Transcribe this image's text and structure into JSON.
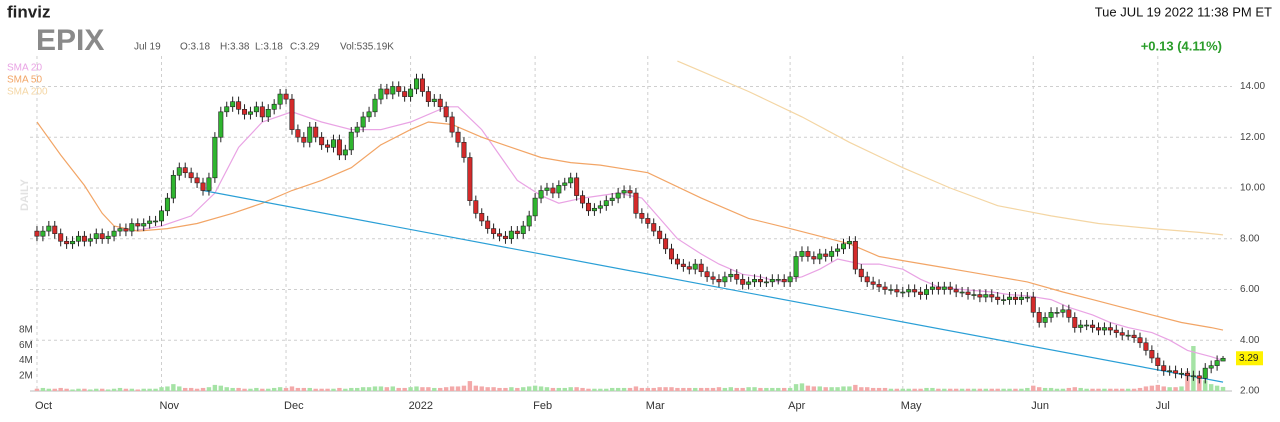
{
  "chart_data": {
    "type": "candlestick",
    "brand": "finviz",
    "title": "EPIX",
    "date": "Jul 19",
    "ohlc_text": [
      "O:3.18",
      "H:3.38",
      "L:3.18",
      "C:3.29"
    ],
    "volume_text": "Vol:535.19K",
    "timestamp": "Tue JUL 19 2022 11:38 PM ET",
    "change": "+0.13 (4.11%)",
    "change_color": "#2a9d2a",
    "period_label": "DAILY",
    "up_color": "#2fb52f",
    "down_color": "#d42a2a",
    "up_volume_color": "#a5e3a5",
    "down_volume_color": "#f3a9a9",
    "grid": true,
    "categories": [
      "Oct",
      null,
      null,
      null,
      null,
      null,
      null,
      null,
      null,
      null,
      null,
      null,
      null,
      null,
      null,
      null,
      null,
      null,
      null,
      null,
      null,
      "Nov",
      null,
      null,
      null,
      null,
      null,
      null,
      null,
      null,
      null,
      null,
      null,
      null,
      null,
      null,
      null,
      null,
      null,
      null,
      null,
      null,
      "Dec",
      null,
      null,
      null,
      null,
      null,
      null,
      null,
      null,
      null,
      null,
      null,
      null,
      null,
      null,
      null,
      null,
      null,
      null,
      null,
      null,
      "2022",
      null,
      null,
      null,
      null,
      null,
      null,
      null,
      null,
      null,
      null,
      null,
      null,
      null,
      null,
      null,
      null,
      null,
      null,
      null,
      null,
      "Feb",
      null,
      null,
      null,
      null,
      null,
      null,
      null,
      null,
      null,
      null,
      null,
      null,
      null,
      null,
      null,
      null,
      null,
      null,
      "Mar",
      null,
      null,
      null,
      null,
      null,
      null,
      null,
      null,
      null,
      null,
      null,
      null,
      null,
      null,
      null,
      null,
      null,
      null,
      null,
      null,
      null,
      null,
      null,
      "Apr",
      null,
      null,
      null,
      null,
      null,
      null,
      null,
      null,
      null,
      null,
      null,
      null,
      null,
      null,
      null,
      null,
      null,
      null,
      "May",
      null,
      null,
      null,
      null,
      null,
      null,
      null,
      null,
      null,
      null,
      null,
      null,
      null,
      null,
      null,
      null,
      null,
      null,
      null,
      null,
      null,
      "Jun",
      null,
      null,
      null,
      null,
      null,
      null,
      null,
      null,
      null,
      null,
      null,
      null,
      null,
      null,
      null,
      null,
      null,
      null,
      null,
      null,
      "Jul",
      null,
      null,
      null,
      null,
      null,
      null,
      null,
      null,
      null,
      null,
      null
    ],
    "open": [
      8.3,
      8.1,
      8.3,
      8.5,
      8.2,
      7.9,
      7.8,
      7.9,
      8.1,
      7.9,
      8.0,
      8.2,
      8.0,
      8.1,
      8.3,
      8.4,
      8.3,
      8.6,
      8.5,
      8.6,
      8.7,
      8.7,
      9.1,
      9.6,
      10.5,
      10.8,
      10.6,
      10.4,
      10.2,
      9.9,
      10.4,
      12.0,
      13.0,
      13.2,
      13.4,
      13.1,
      12.9,
      13.0,
      13.2,
      12.8,
      13.1,
      13.3,
      13.7,
      13.5,
      12.3,
      12.0,
      11.8,
      12.4,
      12.0,
      11.7,
      11.6,
      11.9,
      11.3,
      11.5,
      12.2,
      12.4,
      12.8,
      13.0,
      13.5,
      13.9,
      13.7,
      14.0,
      13.8,
      13.6,
      13.9,
      14.3,
      13.8,
      13.4,
      13.5,
      13.2,
      12.8,
      12.2,
      11.8,
      11.2,
      9.5,
      9.0,
      8.7,
      8.4,
      8.2,
      8.1,
      8.0,
      8.3,
      8.2,
      8.5,
      8.9,
      9.6,
      9.9,
      10.0,
      9.8,
      10.1,
      10.2,
      10.4,
      9.7,
      9.4,
      9.1,
      9.2,
      9.3,
      9.5,
      9.6,
      9.8,
      9.9,
      9.8,
      9.0,
      8.8,
      8.6,
      8.3,
      8.0,
      7.6,
      7.2,
      7.0,
      6.9,
      6.8,
      7.0,
      6.7,
      6.5,
      6.4,
      6.3,
      6.5,
      6.6,
      6.4,
      6.2,
      6.3,
      6.4,
      6.3,
      6.3,
      6.4,
      6.4,
      6.3,
      6.5,
      7.3,
      7.5,
      7.3,
      7.2,
      7.4,
      7.3,
      7.5,
      7.6,
      7.8,
      7.9,
      6.8,
      6.5,
      6.3,
      6.2,
      6.1,
      6.0,
      6.0,
      5.9,
      5.9,
      6.0,
      5.9,
      5.8,
      6.0,
      6.1,
      6.0,
      6.1,
      6.0,
      5.9,
      5.9,
      5.8,
      5.8,
      5.7,
      5.8,
      5.7,
      5.6,
      5.6,
      5.7,
      5.6,
      5.7,
      5.7,
      5.1,
      4.7,
      4.9,
      5.1,
      5.1,
      5.2,
      4.9,
      4.5,
      4.6,
      4.6,
      4.5,
      4.4,
      4.5,
      4.4,
      4.3,
      4.2,
      4.2,
      4.1,
      3.9,
      3.6,
      3.3,
      3.0,
      2.8,
      2.8,
      2.7,
      2.7,
      2.6,
      2.6,
      2.5,
      2.9,
      3.0,
      3.18
    ],
    "high": [
      8.5,
      8.5,
      8.7,
      8.7,
      8.4,
      8.1,
      8.1,
      8.3,
      8.3,
      8.2,
      8.4,
      8.4,
      8.3,
      8.5,
      8.6,
      8.6,
      8.8,
      8.8,
      8.8,
      8.9,
      8.9,
      9.3,
      9.8,
      10.7,
      11.0,
      11.0,
      10.8,
      10.6,
      10.4,
      10.6,
      12.2,
      13.2,
      13.4,
      13.6,
      13.6,
      13.3,
      13.2,
      13.4,
      13.4,
      13.3,
      13.5,
      13.9,
      13.9,
      13.7,
      12.5,
      12.2,
      12.6,
      12.6,
      12.2,
      11.9,
      12.1,
      12.1,
      11.7,
      12.4,
      12.6,
      13.0,
      13.2,
      13.7,
      14.1,
      14.1,
      14.2,
      14.2,
      14.0,
      14.1,
      14.5,
      14.5,
      14.0,
      13.7,
      13.7,
      13.4,
      13.0,
      12.4,
      12.0,
      11.4,
      9.7,
      9.2,
      8.9,
      8.6,
      8.4,
      8.3,
      8.5,
      8.5,
      8.7,
      9.1,
      9.8,
      10.1,
      10.2,
      10.2,
      10.3,
      10.4,
      10.6,
      10.6,
      9.9,
      9.6,
      9.4,
      9.5,
      9.7,
      9.8,
      10.0,
      10.1,
      10.1,
      10.0,
      9.2,
      9.0,
      8.8,
      8.5,
      8.2,
      7.8,
      7.4,
      7.2,
      7.1,
      7.2,
      7.2,
      6.9,
      6.7,
      6.6,
      6.7,
      6.8,
      6.8,
      6.6,
      6.5,
      6.6,
      6.6,
      6.5,
      6.6,
      6.6,
      6.6,
      6.7,
      7.5,
      7.7,
      7.7,
      7.5,
      7.6,
      7.6,
      7.7,
      7.8,
      8.0,
      8.1,
      8.1,
      7.0,
      6.7,
      6.5,
      6.4,
      6.3,
      6.2,
      6.2,
      6.1,
      6.2,
      6.2,
      6.1,
      6.2,
      6.3,
      6.3,
      6.3,
      6.3,
      6.2,
      6.1,
      6.1,
      6.0,
      6.0,
      6.0,
      6.0,
      5.9,
      5.8,
      5.9,
      5.9,
      5.9,
      5.9,
      5.9,
      5.3,
      5.1,
      5.3,
      5.3,
      5.4,
      5.4,
      5.1,
      4.8,
      4.8,
      4.8,
      4.7,
      4.7,
      4.7,
      4.6,
      4.5,
      4.4,
      4.4,
      4.3,
      4.1,
      3.8,
      3.5,
      3.2,
      3.0,
      3.0,
      2.9,
      2.9,
      2.8,
      2.8,
      3.1,
      3.2,
      3.4,
      3.38
    ],
    "low": [
      7.9,
      7.9,
      8.1,
      8.0,
      7.7,
      7.6,
      7.6,
      7.7,
      7.7,
      7.7,
      7.8,
      7.8,
      7.8,
      7.9,
      8.1,
      8.1,
      8.1,
      8.3,
      8.3,
      8.4,
      8.5,
      8.5,
      8.9,
      9.4,
      10.3,
      10.4,
      10.2,
      10.0,
      9.7,
      9.7,
      10.2,
      11.8,
      12.8,
      13.0,
      12.9,
      12.7,
      12.7,
      12.8,
      12.6,
      12.6,
      12.9,
      13.1,
      13.3,
      12.1,
      11.8,
      11.6,
      11.6,
      11.8,
      11.5,
      11.4,
      11.4,
      11.1,
      11.1,
      11.3,
      12.0,
      12.2,
      12.6,
      12.8,
      13.3,
      13.5,
      13.5,
      13.6,
      13.4,
      13.4,
      13.7,
      13.6,
      13.2,
      13.2,
      13.0,
      12.6,
      12.0,
      11.6,
      11.0,
      9.3,
      8.8,
      8.5,
      8.2,
      8.0,
      7.9,
      7.8,
      7.8,
      8.0,
      8.0,
      8.3,
      8.7,
      9.4,
      9.7,
      9.6,
      9.6,
      9.9,
      10.0,
      9.5,
      9.2,
      8.9,
      8.9,
      9.0,
      9.1,
      9.3,
      9.4,
      9.6,
      9.6,
      8.8,
      8.6,
      8.4,
      8.1,
      7.8,
      7.4,
      7.0,
      6.8,
      6.7,
      6.6,
      6.6,
      6.5,
      6.3,
      6.2,
      6.1,
      6.1,
      6.3,
      6.2,
      6.0,
      6.0,
      6.1,
      6.1,
      6.1,
      6.1,
      6.2,
      6.1,
      6.1,
      6.3,
      7.1,
      7.1,
      7.0,
      7.0,
      7.1,
      7.1,
      7.3,
      7.4,
      7.6,
      6.6,
      6.3,
      6.1,
      6.0,
      5.9,
      5.8,
      5.8,
      5.7,
      5.7,
      5.7,
      5.7,
      5.6,
      5.6,
      5.8,
      5.8,
      5.8,
      5.8,
      5.7,
      5.7,
      5.6,
      5.6,
      5.5,
      5.5,
      5.5,
      5.4,
      5.4,
      5.4,
      5.4,
      5.4,
      5.5,
      4.9,
      4.5,
      4.5,
      4.7,
      4.9,
      4.9,
      4.7,
      4.3,
      4.3,
      4.4,
      4.3,
      4.2,
      4.2,
      4.2,
      4.1,
      4.0,
      4.0,
      3.9,
      3.7,
      3.4,
      3.1,
      2.8,
      2.6,
      2.6,
      2.5,
      2.5,
      2.4,
      2.4,
      2.3,
      2.3,
      2.7,
      2.8,
      3.18
    ],
    "close": [
      8.1,
      8.3,
      8.5,
      8.2,
      7.9,
      7.8,
      7.9,
      8.1,
      7.9,
      8.0,
      8.2,
      8.0,
      8.1,
      8.3,
      8.4,
      8.3,
      8.6,
      8.5,
      8.6,
      8.7,
      8.7,
      9.1,
      9.6,
      10.5,
      10.8,
      10.6,
      10.4,
      10.2,
      9.9,
      10.4,
      12.0,
      13.0,
      13.2,
      13.4,
      13.1,
      12.9,
      13.0,
      13.2,
      12.8,
      13.1,
      13.3,
      13.7,
      13.5,
      12.3,
      12.0,
      11.8,
      12.4,
      12.0,
      11.7,
      11.6,
      11.9,
      11.3,
      11.5,
      12.2,
      12.4,
      12.8,
      13.0,
      13.5,
      13.9,
      13.7,
      14.0,
      13.8,
      13.6,
      13.9,
      14.3,
      13.8,
      13.4,
      13.5,
      13.2,
      12.8,
      12.2,
      11.8,
      11.2,
      9.5,
      9.0,
      8.7,
      8.4,
      8.2,
      8.1,
      8.0,
      8.3,
      8.2,
      8.5,
      8.9,
      9.6,
      9.9,
      10.0,
      9.8,
      10.1,
      10.2,
      10.4,
      9.7,
      9.4,
      9.1,
      9.2,
      9.3,
      9.5,
      9.6,
      9.8,
      9.9,
      9.8,
      9.0,
      8.8,
      8.6,
      8.3,
      8.0,
      7.6,
      7.2,
      7.0,
      6.9,
      6.8,
      7.0,
      6.7,
      6.5,
      6.4,
      6.3,
      6.5,
      6.6,
      6.4,
      6.2,
      6.3,
      6.4,
      6.3,
      6.3,
      6.4,
      6.4,
      6.3,
      6.5,
      7.3,
      7.5,
      7.3,
      7.2,
      7.4,
      7.3,
      7.5,
      7.6,
      7.8,
      7.9,
      6.8,
      6.5,
      6.3,
      6.2,
      6.1,
      6.0,
      6.0,
      5.9,
      5.9,
      6.0,
      5.9,
      5.8,
      6.0,
      6.1,
      6.0,
      6.1,
      6.0,
      5.9,
      5.9,
      5.8,
      5.8,
      5.7,
      5.8,
      5.7,
      5.6,
      5.6,
      5.7,
      5.6,
      5.7,
      5.7,
      5.1,
      4.7,
      4.9,
      5.1,
      5.1,
      5.2,
      4.9,
      4.5,
      4.6,
      4.6,
      4.5,
      4.4,
      4.5,
      4.4,
      4.3,
      4.2,
      4.2,
      4.1,
      3.9,
      3.6,
      3.3,
      3.0,
      2.8,
      2.8,
      2.7,
      2.7,
      2.6,
      2.6,
      2.5,
      2.9,
      3.0,
      3.2,
      3.29
    ],
    "volume": [
      0.3,
      0.4,
      0.3,
      0.3,
      0.4,
      0.3,
      0.2,
      0.3,
      0.3,
      0.2,
      0.3,
      0.3,
      0.2,
      0.3,
      0.4,
      0.3,
      0.3,
      0.2,
      0.3,
      0.3,
      0.3,
      0.5,
      0.6,
      0.9,
      0.6,
      0.4,
      0.4,
      0.3,
      0.4,
      0.5,
      0.8,
      0.7,
      0.5,
      0.4,
      0.4,
      0.3,
      0.3,
      0.4,
      0.3,
      0.3,
      0.4,
      0.5,
      0.4,
      0.6,
      0.4,
      0.4,
      0.4,
      0.3,
      0.3,
      0.3,
      0.3,
      0.4,
      0.3,
      0.4,
      0.4,
      0.5,
      0.5,
      0.6,
      0.6,
      0.5,
      0.6,
      0.4,
      0.4,
      0.5,
      0.6,
      0.5,
      0.5,
      0.4,
      0.4,
      0.5,
      0.6,
      0.6,
      0.7,
      1.3,
      0.7,
      0.6,
      0.5,
      0.5,
      0.4,
      0.4,
      0.5,
      0.4,
      0.5,
      0.6,
      0.7,
      0.6,
      0.5,
      0.4,
      0.4,
      0.4,
      0.5,
      0.5,
      0.4,
      0.3,
      0.3,
      0.3,
      0.3,
      0.4,
      0.4,
      0.4,
      0.4,
      0.6,
      0.4,
      0.4,
      0.4,
      0.5,
      0.5,
      0.5,
      0.4,
      0.4,
      0.4,
      0.4,
      0.4,
      0.4,
      0.4,
      0.5,
      0.4,
      0.5,
      0.4,
      0.4,
      0.5,
      0.5,
      0.4,
      0.4,
      0.4,
      0.4,
      0.4,
      0.4,
      0.9,
      1.0,
      0.7,
      0.6,
      0.6,
      0.5,
      0.5,
      0.5,
      0.6,
      0.6,
      0.8,
      0.5,
      0.5,
      0.4,
      0.4,
      0.4,
      0.3,
      0.3,
      0.3,
      0.3,
      0.3,
      0.3,
      0.4,
      0.4,
      0.3,
      0.3,
      0.3,
      0.3,
      0.3,
      0.3,
      0.3,
      0.3,
      0.3,
      0.3,
      0.3,
      0.3,
      0.3,
      0.3,
      0.3,
      0.4,
      0.7,
      0.5,
      0.4,
      0.4,
      0.3,
      0.3,
      0.4,
      0.5,
      0.4,
      0.3,
      0.3,
      0.3,
      0.3,
      0.3,
      0.3,
      0.3,
      0.3,
      0.3,
      0.4,
      0.6,
      0.7,
      0.8,
      0.6,
      0.5,
      0.5,
      0.6,
      2.6,
      5.9,
      1.7,
      1.4,
      0.9,
      0.7,
      0.53519
    ],
    "ylim": [
      2,
      15.2
    ],
    "yticks": [
      {
        "value": 2,
        "label": "2.00"
      },
      {
        "value": 4,
        "label": "4.00"
      },
      {
        "value": 6,
        "label": "6.00"
      },
      {
        "value": 8,
        "label": "8.00"
      },
      {
        "value": 10,
        "label": "10.00"
      },
      {
        "value": 12,
        "label": "12.00"
      },
      {
        "value": 14,
        "label": "14.00"
      }
    ],
    "volume_ylim": [
      0,
      8
    ],
    "volume_ticks": [
      {
        "value": 2,
        "label": "2M"
      },
      {
        "value": 4,
        "label": "4M"
      },
      {
        "value": 6,
        "label": "6M"
      },
      {
        "value": 8,
        "label": "8M"
      }
    ],
    "overlays": [
      {
        "name": "SMA 20",
        "color": "#e9a3e4",
        "x": [
          16,
          21,
          26,
          30,
          34,
          38,
          43,
          48,
          53,
          58,
          63,
          69,
          71,
          75,
          78,
          81,
          85,
          88,
          92,
          95,
          98,
          102,
          105,
          108,
          112,
          115,
          119,
          122,
          125,
          129,
          132,
          135,
          139,
          142,
          146,
          149,
          152,
          156,
          161,
          164,
          167,
          171,
          174,
          178,
          181,
          184,
          188,
          191,
          194,
          198,
          200
        ],
        "values": [
          8.3,
          8.5,
          8.9,
          9.8,
          11.6,
          12.6,
          13.0,
          12.6,
          12.3,
          12.3,
          12.6,
          13.2,
          13.2,
          12.3,
          11.3,
          10.3,
          9.7,
          9.4,
          9.6,
          9.7,
          9.8,
          9.6,
          8.8,
          8.0,
          7.4,
          7.0,
          6.6,
          6.5,
          6.3,
          6.5,
          6.8,
          7.2,
          7.0,
          7.0,
          6.8,
          6.4,
          6.1,
          6.0,
          5.9,
          5.8,
          5.75,
          5.6,
          5.3,
          5.0,
          4.7,
          4.5,
          4.3,
          4.0,
          3.6,
          3.35,
          3.2
        ]
      },
      {
        "name": "SMA 50",
        "color": "#f2a566",
        "x": [
          0,
          4,
          8,
          11,
          13,
          17,
          22,
          27,
          33,
          38,
          43,
          48,
          53,
          58,
          63,
          66,
          70,
          75,
          80,
          85,
          90,
          95,
          103,
          112,
          120,
          127,
          132,
          137,
          142,
          147,
          152,
          157,
          162,
          167,
          173,
          178,
          183,
          188,
          193,
          198,
          200
        ],
        "values": [
          12.6,
          11.3,
          10.1,
          9.0,
          8.5,
          8.3,
          8.4,
          8.6,
          9.0,
          9.4,
          9.9,
          10.3,
          10.8,
          11.7,
          12.3,
          12.6,
          12.5,
          12.0,
          11.6,
          11.2,
          11.0,
          10.9,
          10.6,
          9.6,
          8.8,
          8.4,
          8.1,
          7.8,
          7.3,
          7.1,
          6.9,
          6.7,
          6.5,
          6.3,
          5.9,
          5.6,
          5.3,
          5.0,
          4.7,
          4.5,
          4.4
        ]
      },
      {
        "name": "SMA 200",
        "color": "#f4d6a4",
        "x": [
          108,
          112,
          120,
          129,
          137,
          146,
          154,
          162,
          171,
          179,
          188,
          196,
          200
        ],
        "values": [
          15.0,
          14.6,
          13.8,
          12.8,
          11.8,
          10.8,
          10.0,
          9.3,
          8.9,
          8.6,
          8.4,
          8.25,
          8.15
        ]
      }
    ],
    "trendline": {
      "color": "#2a9fd6",
      "x": [
        28,
        200
      ],
      "values": [
        9.9,
        2.35
      ]
    }
  }
}
